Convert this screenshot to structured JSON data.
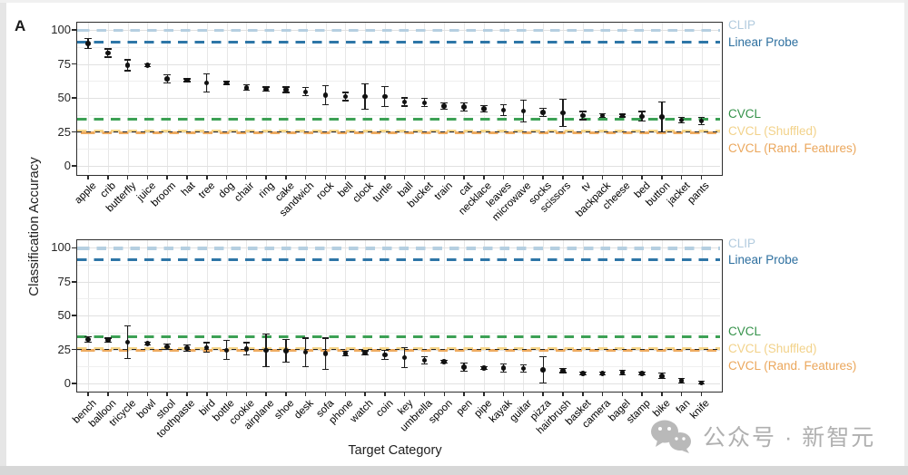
{
  "figure": {
    "panel_label": "A",
    "y_axis_title": "Classification Accuracy",
    "x_axis_title": "Target Category",
    "y_ticks": [
      0,
      25,
      50,
      75,
      100
    ],
    "ylim": [
      -6,
      106
    ],
    "grid": "on"
  },
  "ref_lines": [
    {
      "label": "CLIP",
      "value": 99.5,
      "color": "#b5cfe1",
      "text_color": "#b2cbde"
    },
    {
      "label": "Linear Probe",
      "value": 91.0,
      "color": "#2e76a7",
      "text_color": "#2d6f9f"
    },
    {
      "label": "CVCL",
      "value": 34.5,
      "color": "#3da155",
      "text_color": "#35924a"
    },
    {
      "label": "CVCL (Shuffled)",
      "value": 25.6,
      "color": "#f7d78b",
      "text_color": "#f2d28a"
    },
    {
      "label": "CVCL (Rand. Features)",
      "value": 24.1,
      "color": "#eeab60",
      "text_color": "#eba75c"
    }
  ],
  "chart_data": [
    {
      "type": "scatter",
      "panel": "top",
      "ylabel": "Classification Accuracy",
      "categories": [
        "apple",
        "crib",
        "butterfly",
        "juice",
        "broom",
        "hat",
        "tree",
        "dog",
        "chair",
        "ring",
        "cake",
        "sandwich",
        "rock",
        "bell",
        "clock",
        "turtle",
        "ball",
        "bucket",
        "train",
        "cat",
        "necklace",
        "leaves",
        "microwave",
        "socks",
        "scissors",
        "tv",
        "backpack",
        "cheese",
        "bed",
        "button",
        "jacket",
        "pants"
      ],
      "values": [
        90,
        83,
        74,
        74,
        64,
        63,
        61,
        61,
        57.5,
        56.5,
        56,
        54.5,
        52,
        51,
        51,
        51,
        47,
        46.5,
        44,
        43.5,
        42,
        41,
        40.5,
        39.5,
        39,
        37,
        37,
        37,
        36.5,
        36,
        33.5,
        33
      ],
      "errors": [
        3.5,
        3,
        4,
        1,
        3,
        1,
        6.5,
        1,
        2,
        1.5,
        2,
        3,
        7,
        3,
        9.5,
        7.5,
        3,
        3,
        2.5,
        3,
        2.5,
        4,
        8,
        3,
        10,
        3,
        1.5,
        1,
        3.5,
        11,
        2,
        2.5
      ]
    },
    {
      "type": "scatter",
      "panel": "bottom",
      "xlabel": "Target Category",
      "categories": [
        "bench",
        "balloon",
        "tricycle",
        "bowl",
        "stool",
        "toothpaste",
        "bird",
        "bottle",
        "cookie",
        "airplane",
        "shoe",
        "desk",
        "sofa",
        "phone",
        "watch",
        "coin",
        "key",
        "umbrella",
        "spoon",
        "pen",
        "pipe",
        "kayak",
        "guitar",
        "pizza",
        "hairbrush",
        "basket",
        "camera",
        "bagel",
        "stamp",
        "bike",
        "fan",
        "knife"
      ],
      "values": [
        32.3,
        32,
        30.5,
        29.5,
        27,
        26,
        26.5,
        24.5,
        25.5,
        24.5,
        24,
        23,
        22,
        22,
        22.5,
        21,
        19,
        17,
        16,
        12,
        11.5,
        11.5,
        11,
        10,
        9.5,
        7.5,
        7.5,
        8,
        7.5,
        5.5,
        2,
        0.5
      ],
      "errors": [
        2,
        1.5,
        12,
        1,
        2,
        2.5,
        3.5,
        7,
        4.5,
        12,
        8.5,
        10.5,
        11.5,
        1.5,
        1.5,
        3.5,
        7.5,
        2.5,
        1,
        3,
        1,
        3,
        2.5,
        9.5,
        1.5,
        1,
        1,
        1.5,
        1,
        2,
        1.5,
        1
      ]
    }
  ],
  "colors": {
    "point": "#111111",
    "grid_major": "#e1e1e1",
    "grid_minor": "#efefef",
    "grid_vertical": "#e7e7e7",
    "panel_border": "#2e2e2e",
    "overlay_dash": "#222222"
  },
  "watermark": {
    "text": "公众号 · 新智元"
  }
}
